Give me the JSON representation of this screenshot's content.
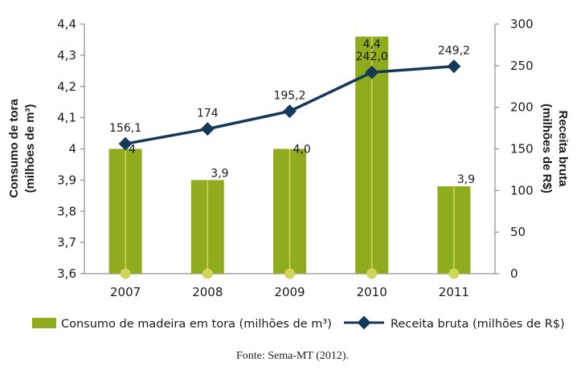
{
  "chart_data": {
    "type": "bar",
    "categories": [
      "2007",
      "2008",
      "2009",
      "2010",
      "2011"
    ],
    "series": [
      {
        "name": "Consumo de madeira em tora (milhões de m³)",
        "type": "bar",
        "axis": "left",
        "values": [
          4.0,
          3.9,
          4.0,
          4.36,
          3.88
        ],
        "labels": [
          "4",
          "3,9",
          "4,0",
          "4,4",
          "3,9"
        ]
      },
      {
        "name": "Receita bruta (milhões de R$)",
        "type": "line",
        "axis": "right",
        "values": [
          156.1,
          174,
          195.2,
          242.0,
          249.2
        ],
        "labels": [
          "156,1",
          "174",
          "195,2",
          "242,0",
          "249,2"
        ]
      }
    ],
    "y_left": {
      "label_line1": "Consumo de tora",
      "label_line2": "(milhões de m³)",
      "ylim": [
        3.6,
        4.4
      ],
      "ticks": [
        "3,6",
        "3,7",
        "3,8",
        "3,9",
        "4",
        "4,1",
        "4,2",
        "4,3",
        "4,4"
      ]
    },
    "y_right": {
      "label_line1": "Receita bruta",
      "label_line2": "(milhões de R$)",
      "ylim": [
        0,
        300
      ],
      "ticks": [
        "0",
        "50",
        "100",
        "150",
        "200",
        "250",
        "300"
      ]
    },
    "legend_position": "bottom",
    "grid": false,
    "colors": {
      "bar": "#8fab1e",
      "line": "#16395a",
      "dot": "#cfd45a",
      "axis": "#777777"
    }
  },
  "source_text": "Fonte: Sema-MT (2012)."
}
